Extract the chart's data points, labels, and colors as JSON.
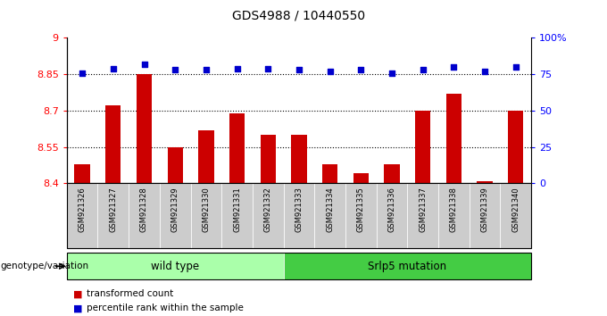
{
  "title": "GDS4988 / 10440550",
  "samples": [
    "GSM921326",
    "GSM921327",
    "GSM921328",
    "GSM921329",
    "GSM921330",
    "GSM921331",
    "GSM921332",
    "GSM921333",
    "GSM921334",
    "GSM921335",
    "GSM921336",
    "GSM921337",
    "GSM921338",
    "GSM921339",
    "GSM921340"
  ],
  "bar_values": [
    8.48,
    8.72,
    8.85,
    8.55,
    8.62,
    8.69,
    8.6,
    8.6,
    8.48,
    8.44,
    8.48,
    8.7,
    8.77,
    8.41,
    8.7
  ],
  "dot_values": [
    76,
    79,
    82,
    78,
    78,
    79,
    79,
    78,
    77,
    78,
    76,
    78,
    80,
    77,
    80
  ],
  "bar_color": "#cc0000",
  "dot_color": "#0000cc",
  "ylim_left": [
    8.4,
    9.0
  ],
  "ylim_right": [
    0,
    100
  ],
  "yticks_left": [
    8.4,
    8.55,
    8.7,
    8.85,
    9.0
  ],
  "ytick_labels_left": [
    "8.4",
    "8.55",
    "8.7",
    "8.85",
    "9"
  ],
  "yticks_right": [
    0,
    25,
    50,
    75,
    100
  ],
  "ytick_labels_right": [
    "0",
    "25",
    "50",
    "75",
    "100%"
  ],
  "grid_lines": [
    8.55,
    8.7,
    8.85
  ],
  "wild_type_count": 7,
  "group1_label": "wild type",
  "group2_label": "Srlp5 mutation",
  "group1_color": "#aaffaa",
  "group2_color": "#44cc44",
  "genotype_label": "genotype/variation",
  "legend1_label": "transformed count",
  "legend2_label": "percentile rank within the sample",
  "bar_width": 0.5,
  "figsize": [
    6.8,
    3.54
  ],
  "dpi": 100
}
